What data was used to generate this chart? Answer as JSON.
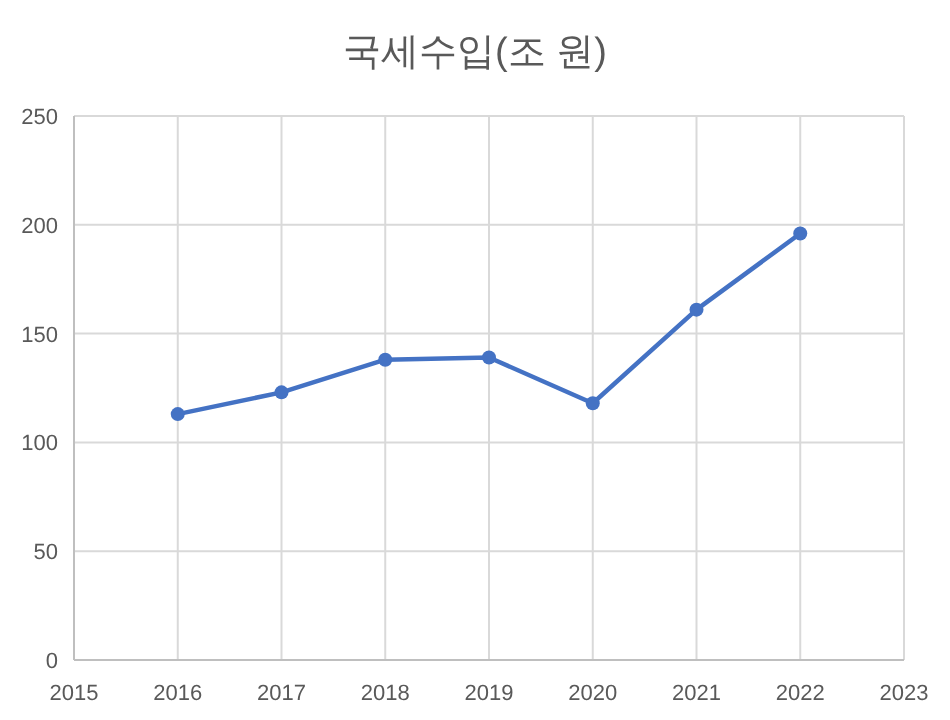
{
  "chart_data": {
    "type": "line",
    "title": "국세수입(조 원)",
    "x": [
      2016,
      2017,
      2018,
      2019,
      2020,
      2021,
      2022
    ],
    "series": [
      {
        "color": "#4472c4",
        "values": [
          113,
          123,
          138,
          139,
          118,
          161,
          196
        ]
      }
    ],
    "xlim": [
      2015,
      2023
    ],
    "xticks": [
      2015,
      2016,
      2017,
      2018,
      2019,
      2020,
      2021,
      2022,
      2023
    ],
    "ylim": [
      0,
      250
    ],
    "yticks": [
      0,
      50,
      100,
      150,
      200,
      250
    ],
    "grid": true,
    "marker": "circle",
    "line_style": "solid"
  }
}
